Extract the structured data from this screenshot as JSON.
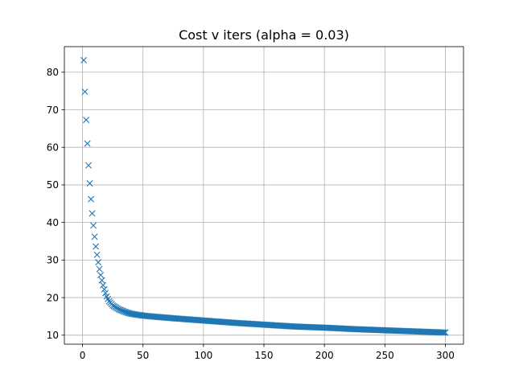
{
  "chart_data": {
    "type": "scatter",
    "title": "Cost v iters (alpha = 0.03)",
    "xlabel": "",
    "ylabel": "",
    "xlim": [
      -15,
      315
    ],
    "ylim": [
      7.6,
      86.8
    ],
    "xticks": [
      0,
      50,
      100,
      150,
      200,
      250,
      300
    ],
    "yticks": [
      10,
      20,
      30,
      40,
      50,
      60,
      70,
      80
    ],
    "grid": true,
    "marker": "x",
    "color": "#1f77b4",
    "series": [
      {
        "x_range": [
          1,
          300
        ],
        "values_at": {
          "1": 83.2,
          "2": 74.8,
          "3": 67.3,
          "4": 61.0,
          "5": 55.2,
          "6": 50.4,
          "7": 46.2,
          "8": 42.4,
          "9": 39.2,
          "10": 36.2,
          "11": 33.6,
          "12": 31.4,
          "13": 29.4,
          "14": 27.6,
          "15": 26.0,
          "16": 24.6,
          "17": 23.3,
          "18": 22.2,
          "19": 21.2,
          "20": 20.3,
          "22": 19.0,
          "25": 17.9,
          "30": 16.9,
          "35": 16.2,
          "40": 15.7,
          "50": 15.2,
          "60": 14.9,
          "75": 14.5,
          "100": 13.9,
          "125": 13.3,
          "150": 12.8,
          "175": 12.3,
          "200": 12.0,
          "225": 11.6,
          "250": 11.3,
          "275": 11.0,
          "300": 10.7
        }
      }
    ]
  }
}
